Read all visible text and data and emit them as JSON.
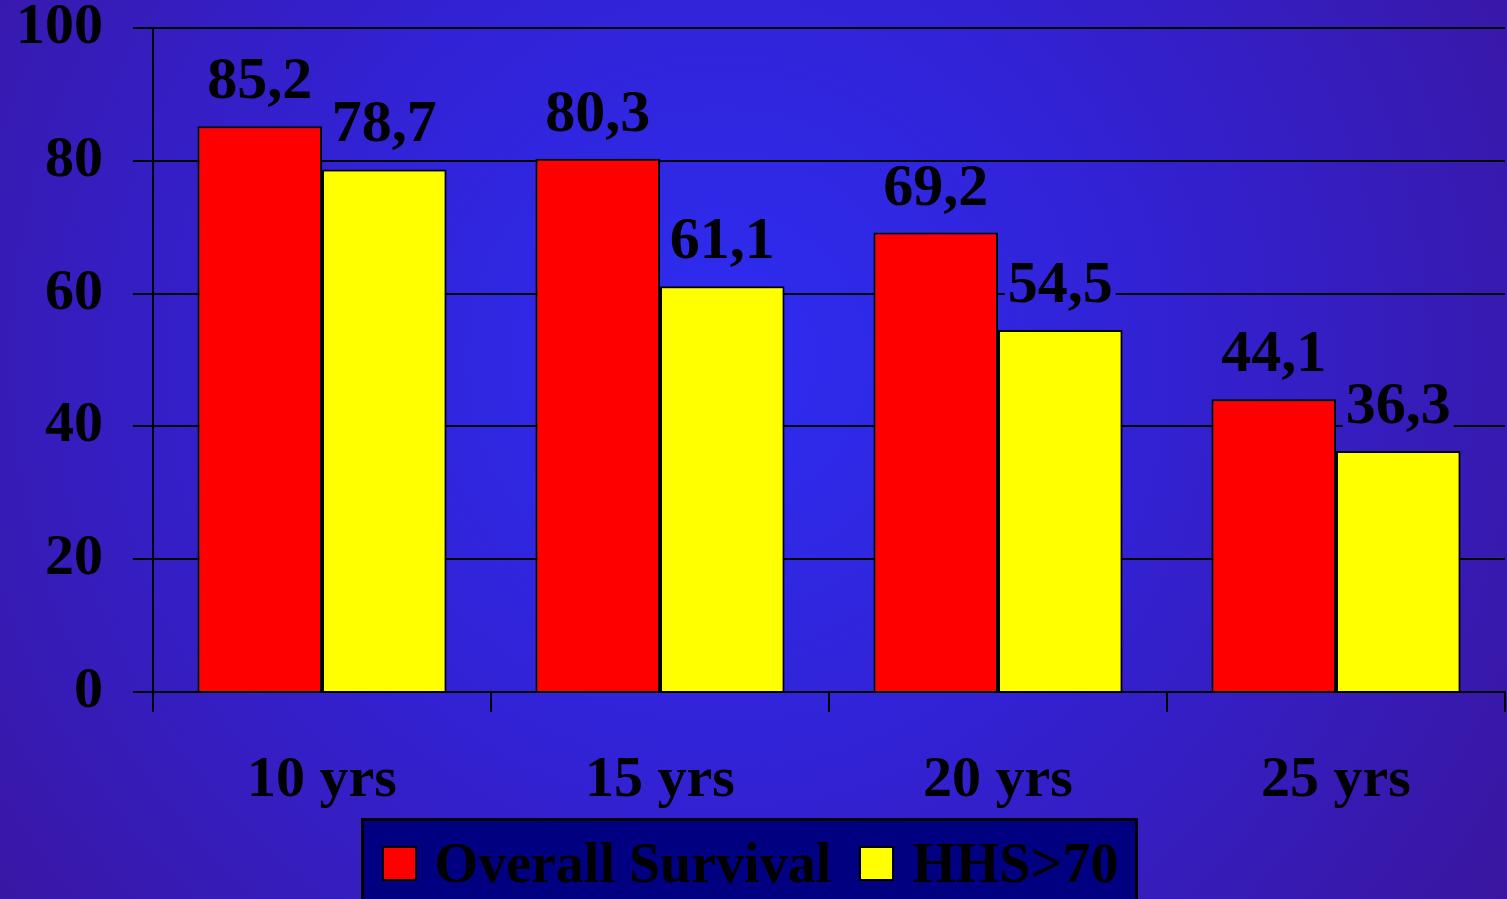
{
  "chart_data": {
    "type": "bar",
    "categories": [
      "10 yrs",
      "15 yrs",
      "20 yrs",
      "25 yrs"
    ],
    "series": [
      {
        "name": "Overall Survival",
        "color": "#ff0000",
        "values": [
          85.2,
          80.3,
          69.2,
          44.1
        ],
        "value_labels": [
          "85,2",
          "80,3",
          "69,2",
          "44,1"
        ]
      },
      {
        "name": "HHS>70",
        "color": "#ffff00",
        "values": [
          78.7,
          61.1,
          54.5,
          36.3
        ],
        "value_labels": [
          "78,7",
          "61,1",
          "54,5",
          "36,3"
        ]
      }
    ],
    "ylim": [
      0,
      100
    ],
    "yticks": [
      0,
      20,
      40,
      60,
      80,
      100
    ],
    "grid": "y",
    "legend": "bottom"
  }
}
